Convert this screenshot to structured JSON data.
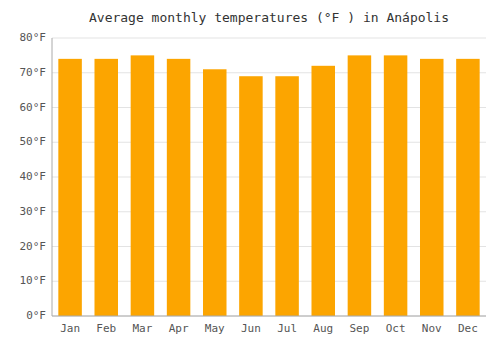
{
  "chart_data": {
    "type": "bar",
    "title": "Average monthly temperatures (°F ) in Anápolis",
    "categories": [
      "Jan",
      "Feb",
      "Mar",
      "Apr",
      "May",
      "Jun",
      "Jul",
      "Aug",
      "Sep",
      "Oct",
      "Nov",
      "Dec"
    ],
    "values": [
      74,
      74,
      75,
      74,
      71,
      69,
      69,
      72,
      75,
      75,
      74,
      74
    ],
    "color": "#FCA500",
    "ylim": [
      0,
      80
    ],
    "yticks": [
      {
        "value": 0,
        "label": "0°F"
      },
      {
        "value": 10,
        "label": "10°F"
      },
      {
        "value": 20,
        "label": "20°F"
      },
      {
        "value": 30,
        "label": "30°F"
      },
      {
        "value": 40,
        "label": "40°F"
      },
      {
        "value": 50,
        "label": "50°F"
      },
      {
        "value": 60,
        "label": "60°F"
      },
      {
        "value": 70,
        "label": "70°F"
      },
      {
        "value": 80,
        "label": "80°F"
      }
    ],
    "grid": true
  }
}
